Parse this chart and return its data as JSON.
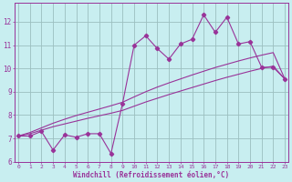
{
  "x": [
    0,
    1,
    2,
    3,
    4,
    5,
    6,
    7,
    8,
    9,
    10,
    11,
    12,
    13,
    14,
    15,
    16,
    17,
    18,
    19,
    20,
    21,
    22,
    23
  ],
  "y_zigzag": [
    7.1,
    7.1,
    7.3,
    6.5,
    7.15,
    7.05,
    7.2,
    7.2,
    6.35,
    8.5,
    11.0,
    11.4,
    10.85,
    10.4,
    11.05,
    11.25,
    12.3,
    11.55,
    12.2,
    11.05,
    11.15,
    10.05,
    10.05,
    9.55
  ],
  "y_line1": [
    7.1,
    7.2,
    7.35,
    7.5,
    7.62,
    7.74,
    7.86,
    7.97,
    8.08,
    8.2,
    8.38,
    8.56,
    8.72,
    8.88,
    9.03,
    9.18,
    9.33,
    9.48,
    9.62,
    9.75,
    9.88,
    10.0,
    10.1,
    9.55
  ],
  "y_line2": [
    7.1,
    7.25,
    7.45,
    7.65,
    7.82,
    7.98,
    8.12,
    8.26,
    8.4,
    8.55,
    8.78,
    9.0,
    9.2,
    9.38,
    9.55,
    9.72,
    9.88,
    10.04,
    10.18,
    10.32,
    10.45,
    10.57,
    10.68,
    9.55
  ],
  "color": "#993399",
  "bg_color": "#c8eef0",
  "grid_color": "#9bbfbf",
  "ylim": [
    6,
    12.8
  ],
  "xlim": [
    -0.3,
    23.3
  ],
  "yticks": [
    6,
    7,
    8,
    9,
    10,
    11,
    12
  ],
  "xticks": [
    0,
    1,
    2,
    3,
    4,
    5,
    6,
    7,
    8,
    9,
    10,
    11,
    12,
    13,
    14,
    15,
    16,
    17,
    18,
    19,
    20,
    21,
    22,
    23
  ],
  "xlabel": "Windchill (Refroidissement éolien,°C)",
  "font_color": "#993399"
}
